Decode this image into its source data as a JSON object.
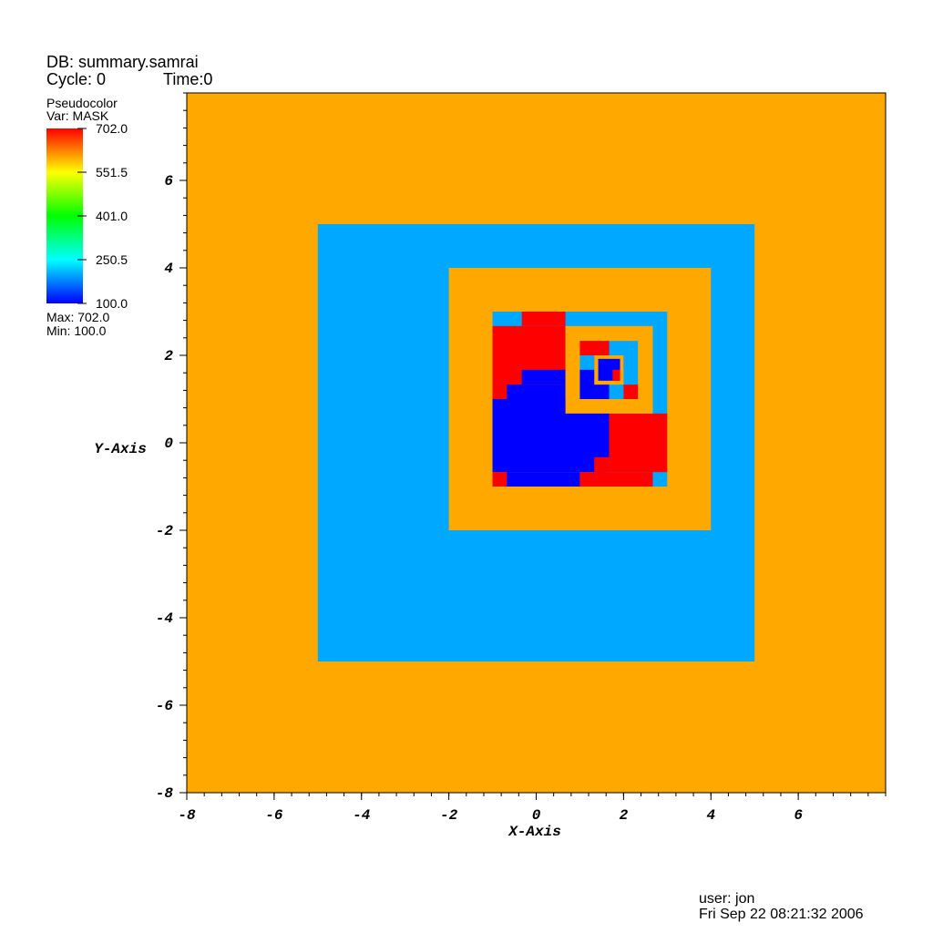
{
  "header": {
    "db": "DB: summary.samrai",
    "cycle": "Cycle: 0",
    "time": "Time:0"
  },
  "footer": {
    "user": "user: jon",
    "date": "Fri Sep 22 08:21:32 2006"
  },
  "chart_data": {
    "type": "pseudocolor",
    "xlabel": "X-Axis",
    "ylabel": "Y-Axis",
    "xlim": [
      -8,
      8
    ],
    "ylim": [
      -8,
      8
    ],
    "xticks": [
      -8,
      -6,
      -4,
      -2,
      0,
      2,
      4,
      6
    ],
    "yticks": [
      -8,
      -6,
      -4,
      -2,
      0,
      2,
      4,
      6
    ],
    "legend": {
      "title": "Pseudocolor",
      "variable": "Var: MASK",
      "colortable": [
        "#0000ff",
        "#00ffff",
        "#00ff00",
        "#ffff00",
        "#ff0000"
      ],
      "clim": [
        100,
        702
      ],
      "ticks": [
        {
          "value": 702,
          "label": "702.0"
        },
        {
          "value": 551.5,
          "label": "551.5"
        },
        {
          "value": 401,
          "label": "401.0"
        },
        {
          "value": 250.5,
          "label": "250.5"
        },
        {
          "value": 100,
          "label": "100.0"
        }
      ],
      "max_label": "Max:  702.0",
      "min_label": "Min:  100.0"
    },
    "regions": [
      {
        "x": [
          -8,
          8
        ],
        "y": [
          -8,
          8
        ],
        "value": 602
      },
      {
        "x": [
          -5,
          5
        ],
        "y": [
          -5,
          5
        ],
        "value": 200
      },
      {
        "x": [
          -2,
          4
        ],
        "y": [
          -2,
          4
        ],
        "value": 602
      },
      {
        "x": [
          -1,
          3
        ],
        "y": [
          -1,
          3
        ],
        "value": 200
      },
      {
        "x": [
          -1,
          0.67
        ],
        "y": [
          1,
          2.67
        ],
        "value": 702
      },
      {
        "x": [
          -0.33,
          0.67
        ],
        "y": [
          2.67,
          3
        ],
        "value": 702
      },
      {
        "x": [
          -0.67,
          0.67
        ],
        "y": [
          1,
          1.33
        ],
        "value": 100
      },
      {
        "x": [
          -0.33,
          0.67
        ],
        "y": [
          1.33,
          1.67
        ],
        "value": 100
      },
      {
        "x": [
          -1,
          1.67
        ],
        "y": [
          -0.67,
          1
        ],
        "value": 100
      },
      {
        "x": [
          1.67,
          3
        ],
        "y": [
          -0.67,
          0.67
        ],
        "value": 702
      },
      {
        "x": [
          1.33,
          1.67
        ],
        "y": [
          -0.67,
          -0.33
        ],
        "value": 702
      },
      {
        "x": [
          -1,
          -0.67
        ],
        "y": [
          -1,
          -0.67
        ],
        "value": 702
      },
      {
        "x": [
          -0.67,
          1
        ],
        "y": [
          -1,
          -0.67
        ],
        "value": 100
      },
      {
        "x": [
          1,
          2.67
        ],
        "y": [
          -1,
          -0.67
        ],
        "value": 702
      },
      {
        "x": [
          0.67,
          2.67
        ],
        "y": [
          0.67,
          2.67
        ],
        "value": 602
      },
      {
        "x": [
          1,
          2.33
        ],
        "y": [
          1,
          2.33
        ],
        "value": 200
      },
      {
        "x": [
          1,
          1.67
        ],
        "y": [
          2,
          2.33
        ],
        "value": 702
      },
      {
        "x": [
          1.33,
          2
        ],
        "y": [
          1.67,
          2
        ],
        "value": 702
      },
      {
        "x": [
          1,
          1.67
        ],
        "y": [
          1,
          1.67
        ],
        "value": 100
      },
      {
        "x": [
          2,
          2.33
        ],
        "y": [
          1,
          1.33
        ],
        "value": 702
      },
      {
        "x": [
          1.33,
          2
        ],
        "y": [
          1.33,
          2
        ],
        "value": 602
      },
      {
        "x": [
          1.42,
          1.92
        ],
        "y": [
          1.42,
          1.92
        ],
        "value": 100
      },
      {
        "x": [
          1.75,
          1.92
        ],
        "y": [
          1.42,
          1.67
        ],
        "value": 702
      }
    ]
  }
}
